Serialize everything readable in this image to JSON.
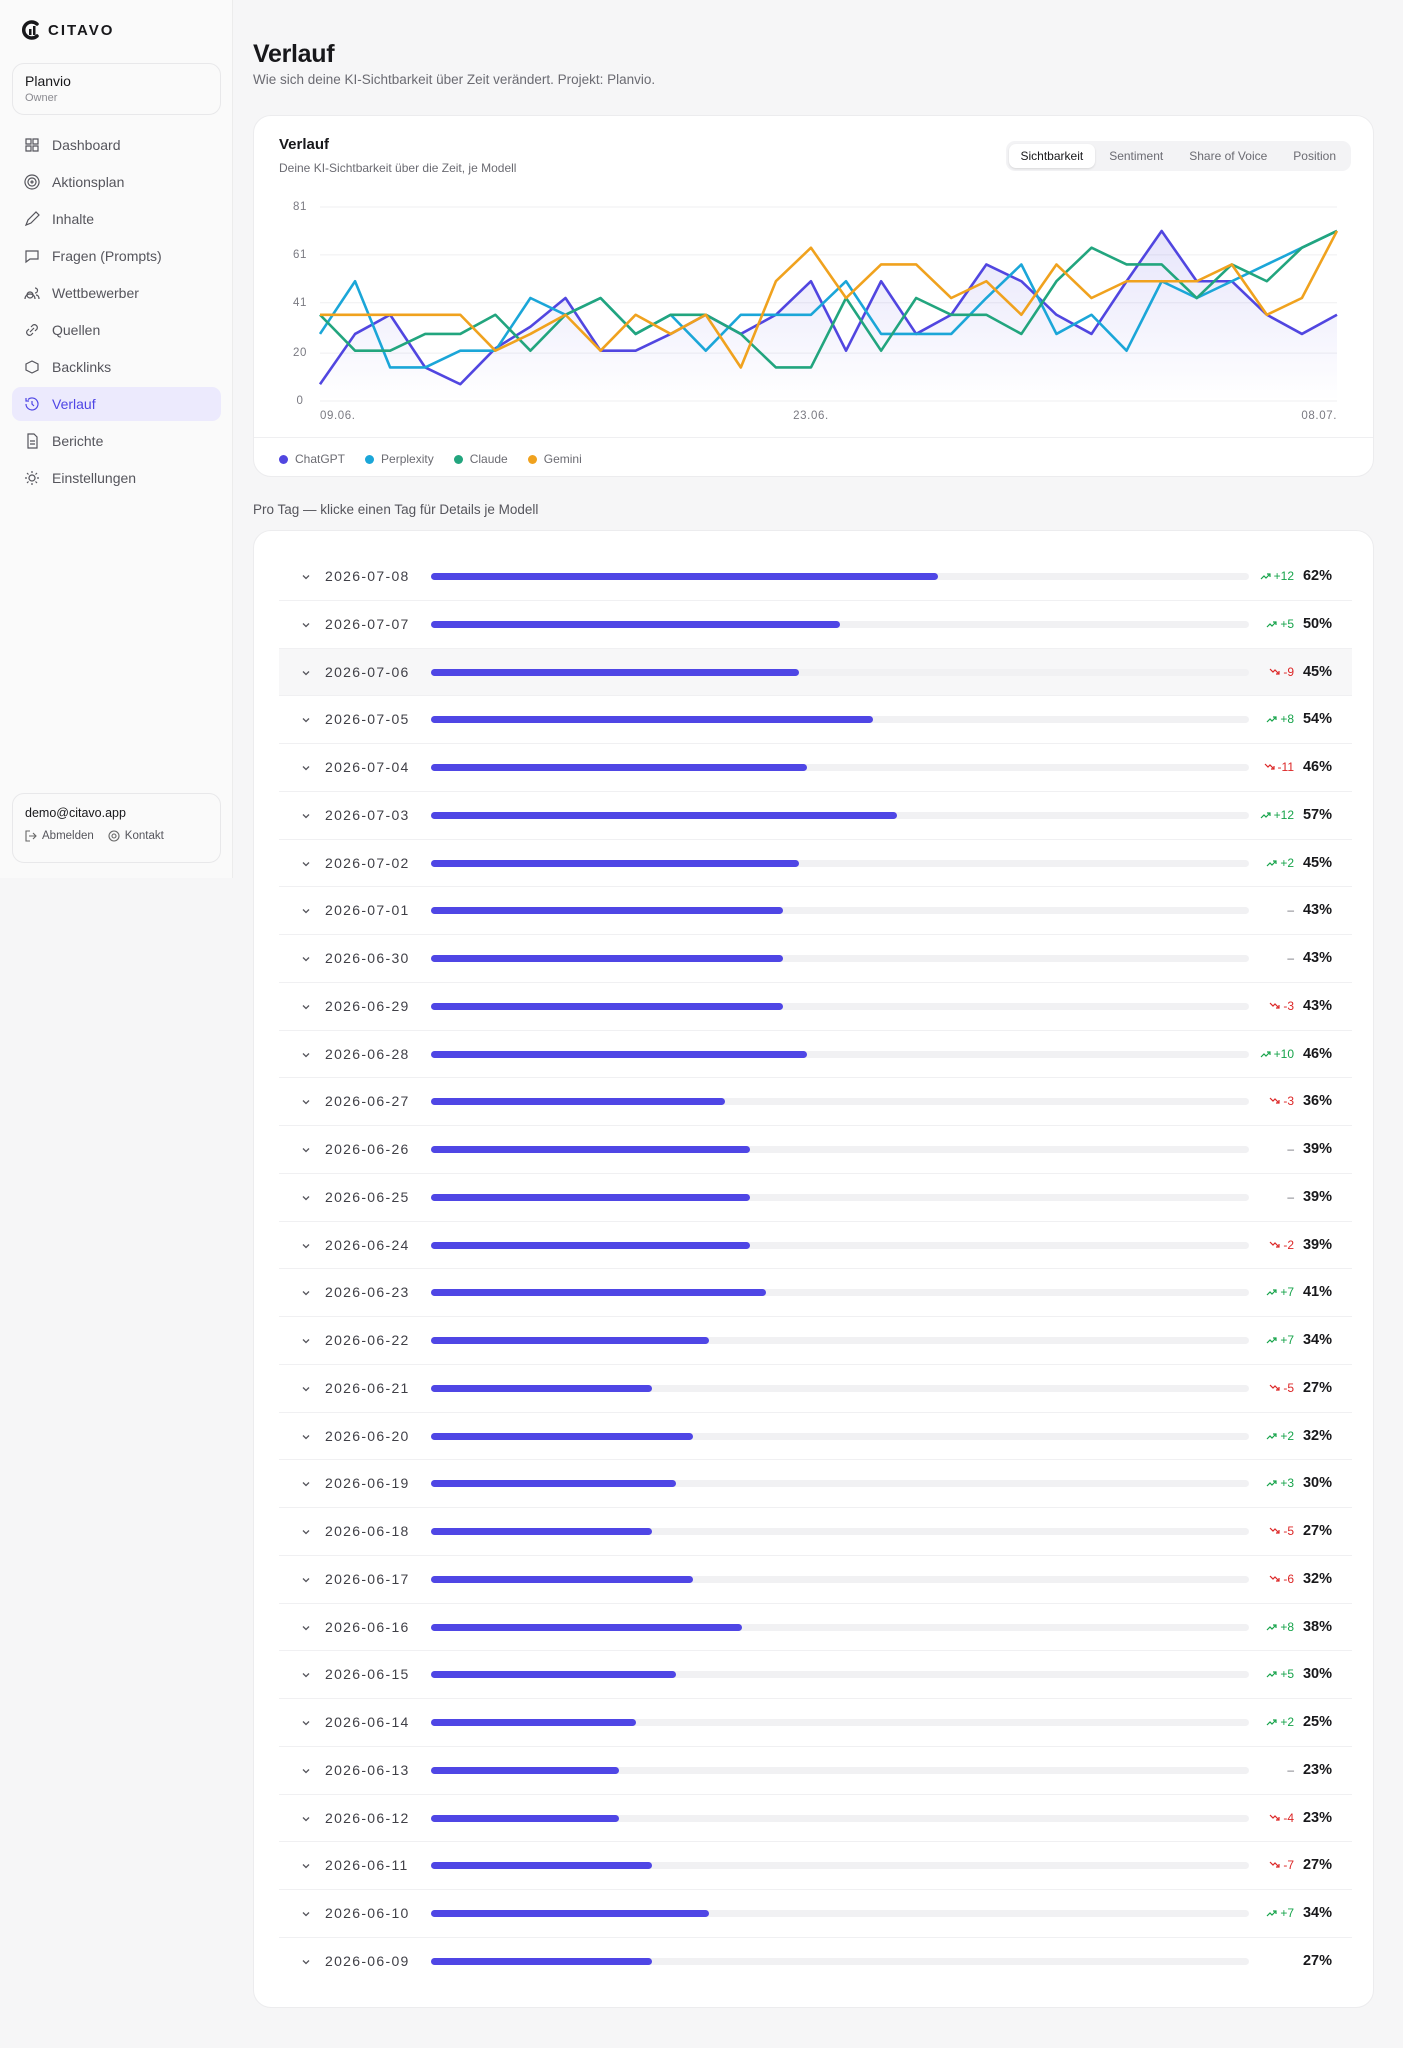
{
  "sidebar": {
    "brand": "CITAVO",
    "workspace": {
      "name": "Planvio",
      "role": "Owner"
    },
    "nav": [
      "Dashboard",
      "Aktionsplan",
      "Inhalte",
      "Fragen (Prompts)",
      "Wettbewerber",
      "Quellen",
      "Backlinks",
      "Verlauf",
      "Berichte",
      "Einstellungen"
    ],
    "active_nav": 7,
    "footer": {
      "email": "demo@citavo.app",
      "links": [
        "Abmelden",
        "Kontakt"
      ]
    }
  },
  "header": {
    "title": "Verlauf",
    "subtitle": "Wie sich deine KI-Sichtbarkeit über Zeit verändert. Projekt: Planvio."
  },
  "chart_data": {
    "type": "line",
    "title": "Verlauf",
    "subtitle": "Deine KI-Sichtbarkeit über die Zeit, je Modell",
    "tabs": [
      "Sichtbarkeit",
      "Sentiment",
      "Share of Voice",
      "Position"
    ],
    "active_tab": 0,
    "categories": [
      "09.06.",
      null,
      null,
      null,
      null,
      null,
      null,
      null,
      null,
      null,
      null,
      null,
      null,
      null,
      "23.06.",
      null,
      null,
      null,
      null,
      null,
      null,
      null,
      null,
      null,
      null,
      null,
      null,
      null,
      null,
      "08.07."
    ],
    "ylim": [
      0,
      81
    ],
    "yticks": [
      0,
      20,
      41,
      61,
      81
    ],
    "grid": true,
    "series": [
      {
        "name": "ChatGPT",
        "color": "#5146e0",
        "area": true,
        "values": [
          7,
          28,
          36,
          14,
          7,
          22,
          31,
          43,
          21,
          21,
          28,
          36,
          28,
          36,
          50,
          21,
          50,
          28,
          36,
          57,
          50,
          36,
          28,
          50,
          71,
          50,
          50,
          36,
          28,
          36
        ]
      },
      {
        "name": "Perplexity",
        "color": "#1ba6d8",
        "values": [
          28,
          50,
          14,
          14,
          21,
          21,
          43,
          36,
          43,
          28,
          36,
          21,
          36,
          36,
          36,
          50,
          28,
          28,
          28,
          43,
          57,
          28,
          36,
          21,
          50,
          43,
          50,
          57,
          64,
          71
        ]
      },
      {
        "name": "Claude",
        "color": "#22a57e",
        "values": [
          36,
          21,
          21,
          28,
          28,
          36,
          21,
          36,
          43,
          28,
          36,
          36,
          28,
          14,
          14,
          43,
          21,
          43,
          36,
          36,
          28,
          50,
          64,
          57,
          57,
          43,
          57,
          50,
          64,
          71
        ]
      },
      {
        "name": "Gemini",
        "color": "#f0a21e",
        "values": [
          36,
          36,
          36,
          36,
          36,
          21,
          28,
          36,
          21,
          36,
          28,
          36,
          14,
          50,
          64,
          43,
          57,
          57,
          43,
          50,
          36,
          57,
          43,
          50,
          50,
          50,
          57,
          36,
          43,
          71
        ]
      }
    ]
  },
  "days": {
    "title": "Pro Tag — klicke einen Tag für Details je Modell",
    "bar_color": "#4f46e5",
    "hovered_row": 2,
    "rows": [
      {
        "date": "2026-07-08",
        "change": "+12",
        "value": 62,
        "value_label": "62%"
      },
      {
        "date": "2026-07-07",
        "change": "+5",
        "value": 50,
        "value_label": "50%"
      },
      {
        "date": "2026-07-06",
        "change": "-9",
        "value": 45,
        "value_label": "45%"
      },
      {
        "date": "2026-07-05",
        "change": "+8",
        "value": 54,
        "value_label": "54%"
      },
      {
        "date": "2026-07-04",
        "change": "-11",
        "value": 46,
        "value_label": "46%"
      },
      {
        "date": "2026-07-03",
        "change": "+12",
        "value": 57,
        "value_label": "57%"
      },
      {
        "date": "2026-07-02",
        "change": "+2",
        "value": 45,
        "value_label": "45%"
      },
      {
        "date": "2026-07-01",
        "change": "–",
        "value": 43,
        "value_label": "43%"
      },
      {
        "date": "2026-06-30",
        "change": "–",
        "value": 43,
        "value_label": "43%"
      },
      {
        "date": "2026-06-29",
        "change": "-3",
        "value": 43,
        "value_label": "43%"
      },
      {
        "date": "2026-06-28",
        "change": "+10",
        "value": 46,
        "value_label": "46%"
      },
      {
        "date": "2026-06-27",
        "change": "-3",
        "value": 36,
        "value_label": "36%"
      },
      {
        "date": "2026-06-26",
        "change": "–",
        "value": 39,
        "value_label": "39%"
      },
      {
        "date": "2026-06-25",
        "change": "–",
        "value": 39,
        "value_label": "39%"
      },
      {
        "date": "2026-06-24",
        "change": "-2",
        "value": 39,
        "value_label": "39%"
      },
      {
        "date": "2026-06-23",
        "change": "+7",
        "value": 41,
        "value_label": "41%"
      },
      {
        "date": "2026-06-22",
        "change": "+7",
        "value": 34,
        "value_label": "34%"
      },
      {
        "date": "2026-06-21",
        "change": "-5",
        "value": 27,
        "value_label": "27%"
      },
      {
        "date": "2026-06-20",
        "change": "+2",
        "value": 32,
        "value_label": "32%"
      },
      {
        "date": "2026-06-19",
        "change": "+3",
        "value": 30,
        "value_label": "30%"
      },
      {
        "date": "2026-06-18",
        "change": "-5",
        "value": 27,
        "value_label": "27%"
      },
      {
        "date": "2026-06-17",
        "change": "-6",
        "value": 32,
        "value_label": "32%"
      },
      {
        "date": "2026-06-16",
        "change": "+8",
        "value": 38,
        "value_label": "38%"
      },
      {
        "date": "2026-06-15",
        "change": "+5",
        "value": 30,
        "value_label": "30%"
      },
      {
        "date": "2026-06-14",
        "change": "+2",
        "value": 25,
        "value_label": "25%"
      },
      {
        "date": "2026-06-13",
        "change": "–",
        "value": 23,
        "value_label": "23%"
      },
      {
        "date": "2026-06-12",
        "change": "-4",
        "value": 23,
        "value_label": "23%"
      },
      {
        "date": "2026-06-11",
        "change": "-7",
        "value": 27,
        "value_label": "27%"
      },
      {
        "date": "2026-06-10",
        "change": "+7",
        "value": 34,
        "value_label": "34%"
      },
      {
        "date": "2026-06-09",
        "value": 27,
        "value_label": "27%"
      }
    ]
  }
}
